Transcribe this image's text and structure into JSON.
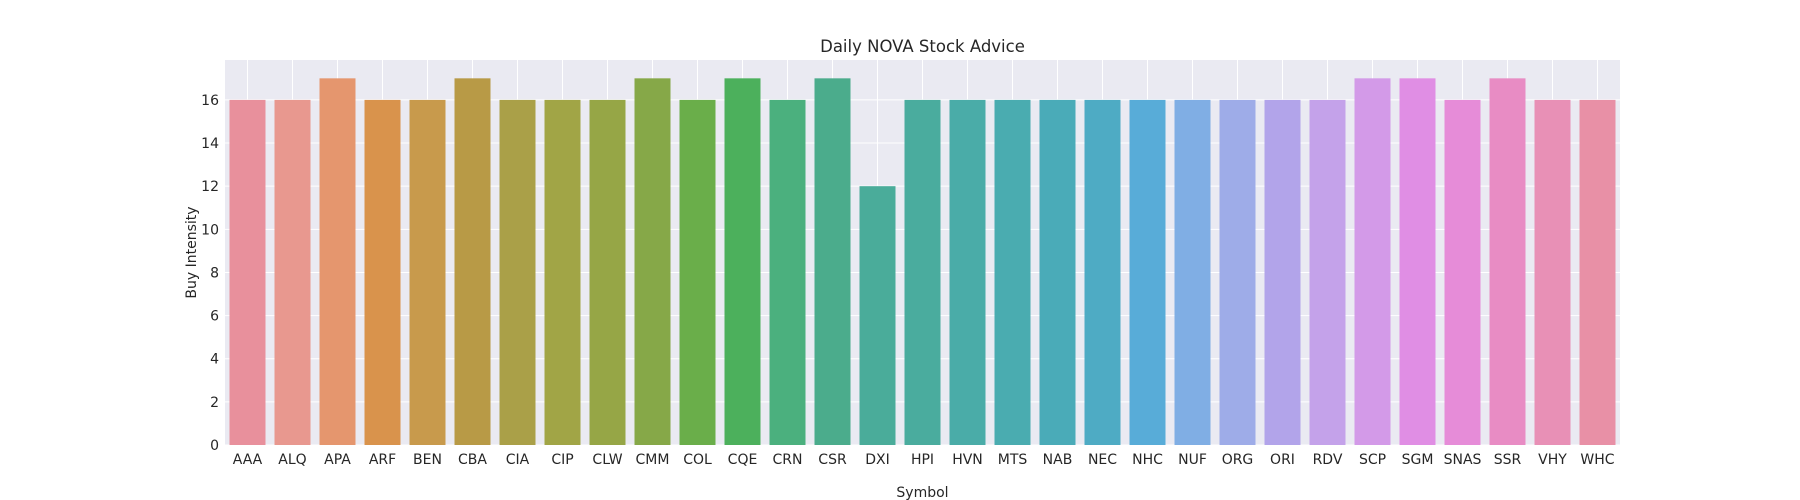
{
  "chart_data": {
    "type": "bar",
    "title": "Daily NOVA Stock Advice",
    "xlabel": "Symbol",
    "ylabel": "Buy Intensity",
    "categories": [
      "AAA",
      "ALQ",
      "APA",
      "ARF",
      "BEN",
      "CBA",
      "CIA",
      "CIP",
      "CLW",
      "CMM",
      "COL",
      "CQE",
      "CRN",
      "CSR",
      "DXI",
      "HPI",
      "HVN",
      "MTS",
      "NAB",
      "NEC",
      "NHC",
      "NUF",
      "ORG",
      "ORI",
      "RDV",
      "SCP",
      "SGM",
      "SNAS",
      "SSR",
      "VHY",
      "WHC"
    ],
    "values": [
      16,
      16,
      17,
      16,
      16,
      17,
      16,
      16,
      16,
      17,
      16,
      17,
      16,
      17,
      12,
      16,
      16,
      16,
      16,
      16,
      16,
      16,
      16,
      16,
      16,
      17,
      17,
      16,
      17,
      16,
      16
    ],
    "colors": [
      "#e8909c",
      "#e8988f",
      "#e5966e",
      "#d9934c",
      "#c89a4c",
      "#b89a46",
      "#aaa048",
      "#a1a546",
      "#96a646",
      "#86a848",
      "#6aae4a",
      "#4cb05c",
      "#4bb07e",
      "#4bac8c",
      "#4aac9a",
      "#4aac9e",
      "#4aaca8",
      "#4aacb0",
      "#4aabb8",
      "#4eabc4",
      "#58acd8",
      "#80aee4",
      "#9eace8",
      "#b2a4ea",
      "#c4a2ea",
      "#d39ae8",
      "#e08ee4",
      "#e68cd8",
      "#e88cc4",
      "#e890b6",
      "#e890a6"
    ],
    "yticks": [
      0,
      2,
      4,
      6,
      8,
      10,
      12,
      14,
      16
    ],
    "ylim": [
      0,
      17.85
    ],
    "grid": true
  }
}
